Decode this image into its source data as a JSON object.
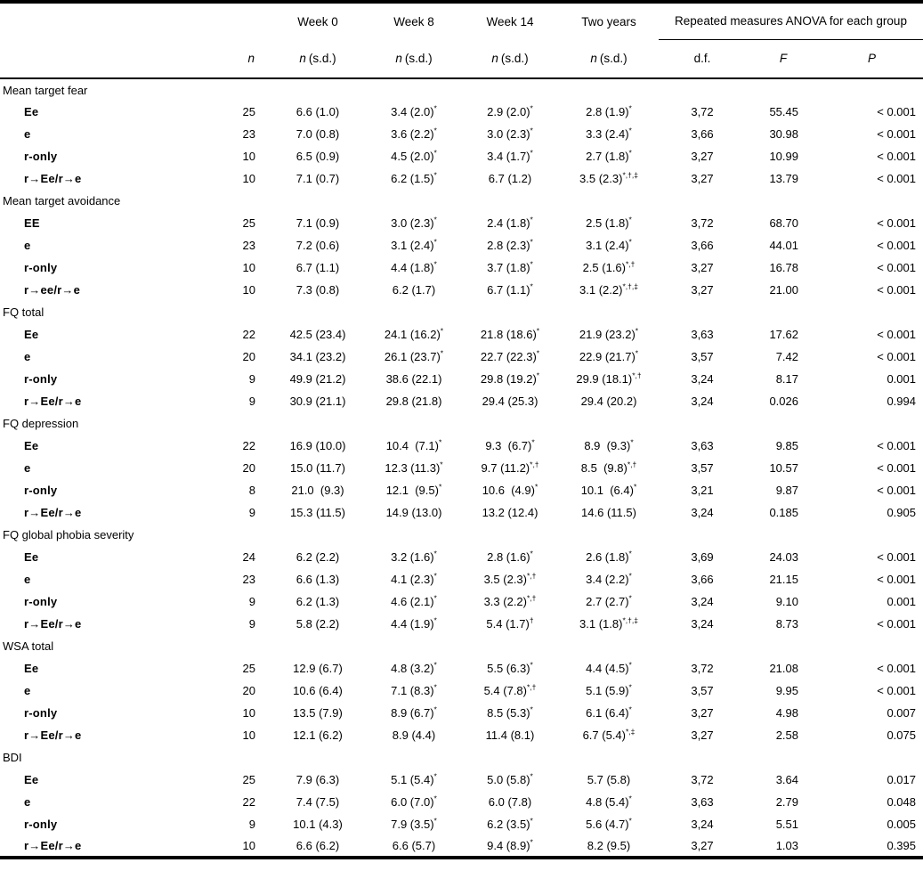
{
  "colors": {
    "text": "#000000",
    "background": "#ffffff",
    "rules": "#000000"
  },
  "table": {
    "header": {
      "n_col_label": "n",
      "timepoints": [
        "Week 0",
        "Week 8",
        "Week 14",
        "Two years"
      ],
      "sub_n": "n",
      "sub_sd": "(s.d.)",
      "anova_group": "Repeated measures ANOVA for each group",
      "anova_df": "d.f.",
      "anova_f": "F",
      "anova_p": "P"
    },
    "sections": [
      {
        "title": "Mean target fear",
        "rows": [
          {
            "label": "Ee",
            "n": "25",
            "week0": "6.6 (1.0)",
            "week8": "3.4 (2.0)",
            "week8_sup": "*",
            "week14": "2.9 (2.0)",
            "week14_sup": "*",
            "two_years": "2.8 (1.9)",
            "two_years_sup": "*",
            "df": "3,72",
            "f": "55.45",
            "p": "< 0.001"
          },
          {
            "label": "e",
            "n": "23",
            "week0": "7.0 (0.8)",
            "week8": "3.6 (2.2)",
            "week8_sup": "*",
            "week14": "3.0 (2.3)",
            "week14_sup": "*",
            "two_years": "3.3 (2.4)",
            "two_years_sup": "*",
            "df": "3,66",
            "f": "30.98",
            "p": "< 0.001"
          },
          {
            "label": "r-only",
            "n": "10",
            "week0": "6.5 (0.9)",
            "week8": "4.5 (2.0)",
            "week8_sup": "*",
            "week14": "3.4 (1.7)",
            "week14_sup": "*",
            "two_years": "2.7 (1.8)",
            "two_years_sup": "*",
            "df": "3,27",
            "f": "10.99",
            "p": "< 0.001"
          },
          {
            "label": "r→Ee/r→e",
            "n": "10",
            "week0": "7.1 (0.7)",
            "week8": "6.2 (1.5)",
            "week8_sup": "*",
            "week14": "6.7 (1.2)",
            "week14_sup": "",
            "two_years": "3.5 (2.3)",
            "two_years_sup": "*,†,‡",
            "df": "3,27",
            "f": "13.79",
            "p": "< 0.001"
          }
        ]
      },
      {
        "title": "Mean target avoidance",
        "rows": [
          {
            "label": "EE",
            "n": "25",
            "week0": "7.1 (0.9)",
            "week8": "3.0 (2.3)",
            "week8_sup": "*",
            "week14": "2.4 (1.8)",
            "week14_sup": "*",
            "two_years": "2.5 (1.8)",
            "two_years_sup": "*",
            "df": "3,72",
            "f": "68.70",
            "p": "< 0.001"
          },
          {
            "label": "e",
            "n": "23",
            "week0": "7.2 (0.6)",
            "week8": "3.1 (2.4)",
            "week8_sup": "*",
            "week14": "2.8 (2.3)",
            "week14_sup": "*",
            "two_years": "3.1 (2.4)",
            "two_years_sup": "*",
            "df": "3,66",
            "f": "44.01",
            "p": "< 0.001"
          },
          {
            "label": "r-only",
            "n": "10",
            "week0": "6.7 (1.1)",
            "week8": "4.4 (1.8)",
            "week8_sup": "*",
            "week14": "3.7 (1.8)",
            "week14_sup": "*",
            "two_years": "2.5 (1.6)",
            "two_years_sup": "*,†",
            "df": "3,27",
            "f": "16.78",
            "p": "< 0.001"
          },
          {
            "label": "r→ee/r→e",
            "n": "10",
            "week0": "7.3 (0.8)",
            "week8": "6.2 (1.7)",
            "week8_sup": "",
            "week14": "6.7 (1.1)",
            "week14_sup": "*",
            "two_years": "3.1 (2.2)",
            "two_years_sup": "*,†,‡",
            "df": "3,27",
            "f": "21.00",
            "p": "< 0.001"
          }
        ]
      },
      {
        "title": "FQ total",
        "rows": [
          {
            "label": "Ee",
            "n": "22",
            "week0": "42.5 (23.4)",
            "week8": "24.1 (16.2)",
            "week8_sup": "*",
            "week14": "21.8 (18.6)",
            "week14_sup": "*",
            "two_years": "21.9 (23.2)",
            "two_years_sup": "*",
            "df": "3,63",
            "f": "17.62",
            "p": "< 0.001"
          },
          {
            "label": "e",
            "n": "20",
            "week0": "34.1 (23.2)",
            "week8": "26.1 (23.7)",
            "week8_sup": "*",
            "week14": "22.7 (22.3)",
            "week14_sup": "*",
            "two_years": "22.9 (21.7)",
            "two_years_sup": "*",
            "df": "3,57",
            "f": "7.42",
            "p": "< 0.001"
          },
          {
            "label": "r-only",
            "n": "9",
            "week0": "49.9 (21.2)",
            "week8": "38.6 (22.1)",
            "week8_sup": "",
            "week14": "29.8 (19.2)",
            "week14_sup": "*",
            "two_years": "29.9 (18.1)",
            "two_years_sup": "*,†",
            "df": "3,24",
            "f": "8.17",
            "p": "0.001"
          },
          {
            "label": "r→Ee/r→e",
            "n": "9",
            "week0": "30.9 (21.1)",
            "week8": "29.8 (21.8)",
            "week8_sup": "",
            "week14": "29.4 (25.3)",
            "week14_sup": "",
            "two_years": "29.4 (20.2)",
            "two_years_sup": "",
            "df": "3,24",
            "f": "0.026",
            "p": "0.994"
          }
        ]
      },
      {
        "title": "FQ depression",
        "rows": [
          {
            "label": "Ee",
            "n": "22",
            "week0": "16.9 (10.0)",
            "week8": "10.4  (7.1)",
            "week8_sup": "*",
            "week14": "9.3  (6.7)",
            "week14_sup": "*",
            "two_years": "8.9  (9.3)",
            "two_years_sup": "*",
            "df": "3,63",
            "f": "9.85",
            "p": "< 0.001"
          },
          {
            "label": "e",
            "n": "20",
            "week0": "15.0 (11.7)",
            "week8": "12.3 (11.3)",
            "week8_sup": "*",
            "week14": "9.7 (11.2)",
            "week14_sup": "*,†",
            "two_years": "8.5  (9.8)",
            "two_years_sup": "*,†",
            "df": "3,57",
            "f": "10.57",
            "p": "< 0.001"
          },
          {
            "label": "r-only",
            "n": "8",
            "week0": "21.0  (9.3)",
            "week8": "12.1  (9.5)",
            "week8_sup": "*",
            "week14": "10.6  (4.9)",
            "week14_sup": "*",
            "two_years": "10.1  (6.4)",
            "two_years_sup": "*",
            "df": "3,21",
            "f": "9.87",
            "p": "< 0.001"
          },
          {
            "label": "r→Ee/r→e",
            "n": "9",
            "week0": "15.3 (11.5)",
            "week8": "14.9 (13.0)",
            "week8_sup": "",
            "week14": "13.2 (12.4)",
            "week14_sup": "",
            "two_years": "14.6 (11.5)",
            "two_years_sup": "",
            "df": "3,24",
            "f": "0.185",
            "p": "0.905"
          }
        ]
      },
      {
        "title": "FQ global phobia severity",
        "rows": [
          {
            "label": "Ee",
            "n": "24",
            "week0": "6.2 (2.2)",
            "week8": "3.2 (1.6)",
            "week8_sup": "*",
            "week14": "2.8 (1.6)",
            "week14_sup": "*",
            "two_years": "2.6 (1.8)",
            "two_years_sup": "*",
            "df": "3,69",
            "f": "24.03",
            "p": "< 0.001"
          },
          {
            "label": "e",
            "n": "23",
            "week0": "6.6 (1.3)",
            "week8": "4.1 (2.3)",
            "week8_sup": "*",
            "week14": "3.5 (2.3)",
            "week14_sup": "*,†",
            "two_years": "3.4 (2.2)",
            "two_years_sup": "*",
            "df": "3,66",
            "f": "21.15",
            "p": "< 0.001"
          },
          {
            "label": "r-only",
            "n": "9",
            "week0": "6.2 (1.3)",
            "week8": "4.6 (2.1)",
            "week8_sup": "*",
            "week14": "3.3 (2.2)",
            "week14_sup": "*,†",
            "two_years": "2.7 (2.7)",
            "two_years_sup": "*",
            "df": "3,24",
            "f": "9.10",
            "p": "0.001"
          },
          {
            "label": "r→Ee/r→e",
            "n": "9",
            "week0": "5.8 (2.2)",
            "week8": "4.4 (1.9)",
            "week8_sup": "*",
            "week14": "5.4 (1.7)",
            "week14_sup": "†",
            "two_years": "3.1 (1.8)",
            "two_years_sup": "*,†,‡",
            "df": "3,24",
            "f": "8.73",
            "p": "< 0.001"
          }
        ]
      },
      {
        "title": "WSA total",
        "rows": [
          {
            "label": "Ee",
            "n": "25",
            "week0": "12.9 (6.7)",
            "week8": "4.8 (3.2)",
            "week8_sup": "*",
            "week14": "5.5 (6.3)",
            "week14_sup": "*",
            "two_years": "4.4 (4.5)",
            "two_years_sup": "*",
            "df": "3,72",
            "f": "21.08",
            "p": "< 0.001"
          },
          {
            "label": "e",
            "n": "20",
            "week0": "10.6 (6.4)",
            "week8": "7.1 (8.3)",
            "week8_sup": "*",
            "week14": "5.4 (7.8)",
            "week14_sup": "*,†",
            "two_years": "5.1 (5.9)",
            "two_years_sup": "*",
            "df": "3,57",
            "f": "9.95",
            "p": "< 0.001"
          },
          {
            "label": "r-only",
            "n": "10",
            "week0": "13.5 (7.9)",
            "week8": "8.9 (6.7)",
            "week8_sup": "*",
            "week14": "8.5 (5.3)",
            "week14_sup": "*",
            "two_years": "6.1 (6.4)",
            "two_years_sup": "*",
            "df": "3,27",
            "f": "4.98",
            "p": "0.007"
          },
          {
            "label": "r→Ee/r→e",
            "n": "10",
            "week0": "12.1 (6.2)",
            "week8": "8.9 (4.4)",
            "week8_sup": "",
            "week14": "11.4 (8.1)",
            "week14_sup": "",
            "two_years": "6.7 (5.4)",
            "two_years_sup": "*,‡",
            "df": "3,27",
            "f": "2.58",
            "p": "0.075"
          }
        ]
      },
      {
        "title": "BDI",
        "rows": [
          {
            "label": "Ee",
            "n": "25",
            "week0": "7.9 (6.3)",
            "week8": "5.1 (5.4)",
            "week8_sup": "*",
            "week14": "5.0 (5.8)",
            "week14_sup": "*",
            "two_years": "5.7 (5.8)",
            "two_years_sup": "",
            "df": "3,72",
            "f": "3.64",
            "p": "0.017"
          },
          {
            "label": "e",
            "n": "22",
            "week0": "7.4 (7.5)",
            "week8": "6.0 (7.0)",
            "week8_sup": "*",
            "week14": "6.0 (7.8)",
            "week14_sup": "",
            "two_years": "4.8 (5.4)",
            "two_years_sup": "*",
            "df": "3,63",
            "f": "2.79",
            "p": "0.048"
          },
          {
            "label": "r-only",
            "n": "9",
            "week0": "10.1 (4.3)",
            "week8": "7.9 (3.5)",
            "week8_sup": "*",
            "week14": "6.2 (3.5)",
            "week14_sup": "*",
            "two_years": "5.6 (4.7)",
            "two_years_sup": "*",
            "df": "3,24",
            "f": "5.51",
            "p": "0.005"
          },
          {
            "label": "r→Ee/r→e",
            "n": "10",
            "week0": "6.6 (6.2)",
            "week8": "6.6 (5.7)",
            "week8_sup": "",
            "week14": "9.4 (8.9)",
            "week14_sup": "*",
            "two_years": "8.2 (9.5)",
            "two_years_sup": "",
            "df": "3,27",
            "f": "1.03",
            "p": "0.395"
          }
        ]
      }
    ]
  }
}
